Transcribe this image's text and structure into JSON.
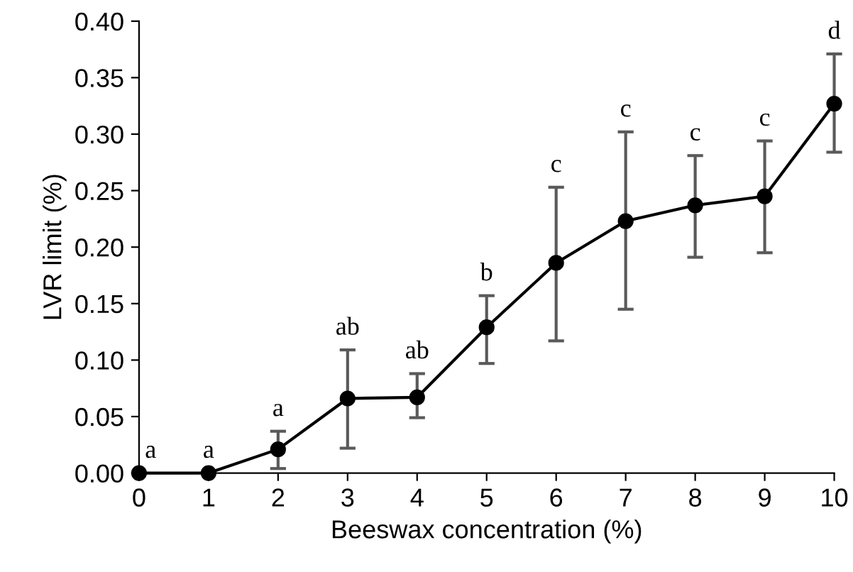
{
  "chart_data": {
    "type": "line",
    "xlabel": "Beeswax concentration (%)",
    "ylabel": "LVR limit (%)",
    "x": [
      0,
      1,
      2,
      3,
      4,
      5,
      6,
      7,
      8,
      9,
      10
    ],
    "series": [
      {
        "color": "#000000",
        "values": [
          0,
          0,
          0.021,
          0.066,
          0.067,
          0.129,
          0.186,
          0.223,
          0.237,
          0.245,
          0.327
        ],
        "errors": [
          null,
          null,
          [
            0.004,
            0.037
          ],
          [
            0.022,
            0.109
          ],
          [
            0.049,
            0.088
          ],
          [
            0.097,
            0.157
          ],
          [
            0.117,
            0.253
          ],
          [
            0.145,
            0.302
          ],
          [
            0.191,
            0.281
          ],
          [
            0.195,
            0.294
          ],
          [
            0.284,
            0.371
          ]
        ]
      }
    ],
    "xlim": [
      0,
      10
    ],
    "xticks": [
      0,
      1,
      2,
      3,
      4,
      5,
      6,
      7,
      8,
      9,
      10
    ],
    "ylim": [
      0,
      0.4
    ],
    "yticks": [
      {
        "value": 0,
        "label": "0.00"
      },
      {
        "value": 0.05,
        "label": "0.05"
      },
      {
        "value": 0.1,
        "label": "0.10"
      },
      {
        "value": 0.15,
        "label": "0.15"
      },
      {
        "value": 0.2,
        "label": "0.20"
      },
      {
        "value": 0.25,
        "label": "0.25"
      },
      {
        "value": 0.3,
        "label": "0.30"
      },
      {
        "value": 0.35,
        "label": "0.35"
      },
      {
        "value": 0.4,
        "label": "0.40"
      }
    ],
    "grid": false,
    "legend": false,
    "marker": "circle",
    "line_style": "solid",
    "annotations": [
      {
        "text": "a",
        "x": 0,
        "y": 0
      },
      {
        "text": "a",
        "x": 1,
        "y": 0
      },
      {
        "text": "a",
        "x": 2,
        "y": 0.037
      },
      {
        "text": "ab",
        "x": 3,
        "y": 0.109
      },
      {
        "text": "ab",
        "x": 4,
        "y": 0.088
      },
      {
        "text": "b",
        "x": 5,
        "y": 0.157
      },
      {
        "text": "c",
        "x": 6,
        "y": 0.253
      },
      {
        "text": "c",
        "x": 7,
        "y": 0.302
      },
      {
        "text": "c",
        "x": 8,
        "y": 0.281
      },
      {
        "text": "c",
        "x": 9,
        "y": 0.294
      },
      {
        "text": "d",
        "x": 10,
        "y": 0.371
      }
    ]
  }
}
